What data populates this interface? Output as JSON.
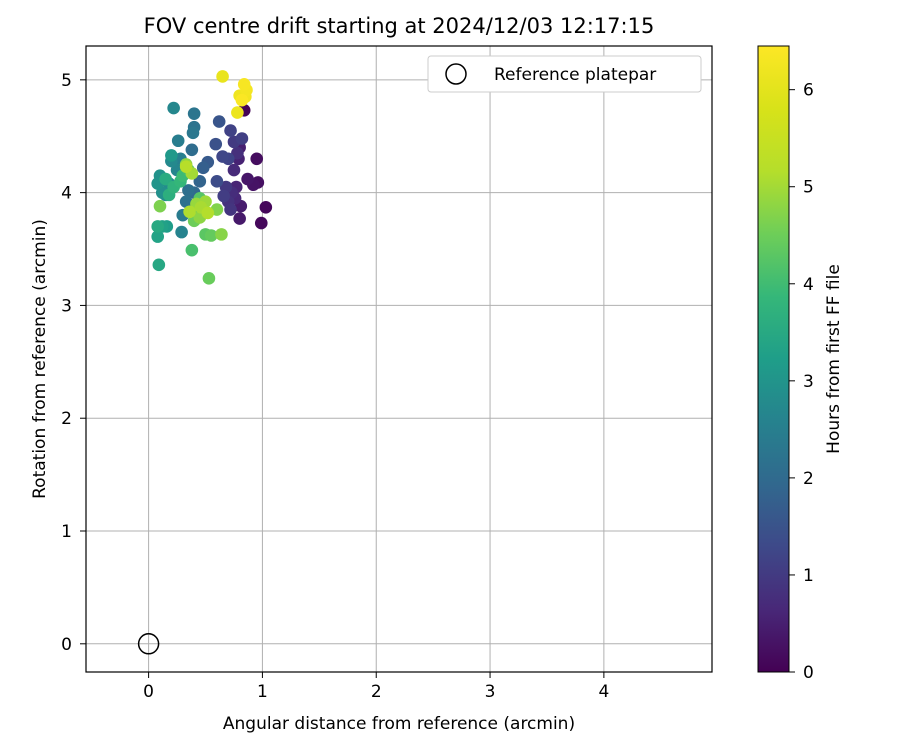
{
  "chart_data": {
    "type": "scatter",
    "title": "FOV centre drift starting at 2024/12/03 12:17:15",
    "xlabel": "Angular distance from reference (arcmin)",
    "ylabel": "Rotation from reference (arcmin)",
    "xlim": [
      -0.55,
      4.95
    ],
    "ylim": [
      -0.25,
      5.3
    ],
    "xticks": [
      0,
      1,
      2,
      3,
      4
    ],
    "yticks": [
      0,
      1,
      2,
      3,
      4,
      5
    ],
    "grid": true,
    "legend": {
      "placement": "upper-right",
      "entries": [
        "Reference platepar"
      ]
    },
    "colorbar": {
      "label": "Hours from first FF file",
      "colormap": "viridis",
      "range": [
        0,
        6.45
      ],
      "ticks": [
        0,
        1,
        2,
        3,
        4,
        5,
        6
      ]
    },
    "reference_point": {
      "x": 0,
      "y": 0
    },
    "series": [
      {
        "columns": [
          "x",
          "y",
          "hours"
        ],
        "points": [
          [
            0.84,
            4.73,
            0.05
          ],
          [
            1.03,
            3.87,
            0.1
          ],
          [
            0.99,
            3.73,
            0.12
          ],
          [
            0.95,
            4.3,
            0.2
          ],
          [
            0.96,
            4.09,
            0.25
          ],
          [
            0.92,
            4.07,
            0.3
          ],
          [
            0.87,
            4.12,
            0.35
          ],
          [
            0.8,
            3.77,
            0.4
          ],
          [
            0.81,
            3.88,
            0.45
          ],
          [
            0.8,
            4.4,
            0.5
          ],
          [
            0.79,
            4.3,
            0.55
          ],
          [
            0.77,
            4.05,
            0.6
          ],
          [
            0.76,
            3.95,
            0.65
          ],
          [
            0.75,
            4.2,
            0.7
          ],
          [
            0.73,
            4.0,
            0.75
          ],
          [
            0.78,
            4.35,
            0.8
          ],
          [
            0.7,
            3.92,
            0.85
          ],
          [
            0.72,
            3.85,
            0.9
          ],
          [
            0.68,
            4.05,
            0.95
          ],
          [
            0.75,
            4.45,
            1.0
          ],
          [
            0.66,
            3.97,
            1.05
          ],
          [
            0.82,
            4.48,
            1.1
          ],
          [
            0.72,
            4.55,
            1.15
          ],
          [
            0.7,
            4.3,
            1.2
          ],
          [
            0.65,
            4.32,
            1.25
          ],
          [
            0.6,
            4.1,
            1.35
          ],
          [
            0.59,
            4.43,
            1.45
          ],
          [
            0.62,
            4.63,
            1.55
          ],
          [
            0.52,
            4.27,
            1.65
          ],
          [
            0.48,
            4.22,
            1.75
          ],
          [
            0.45,
            4.1,
            1.85
          ],
          [
            0.4,
            4.0,
            1.95
          ],
          [
            0.38,
            4.38,
            2.05
          ],
          [
            0.35,
            4.02,
            2.1
          ],
          [
            0.33,
            3.92,
            2.15
          ],
          [
            0.4,
            4.58,
            2.2
          ],
          [
            0.4,
            4.7,
            2.25
          ],
          [
            0.39,
            4.53,
            2.3
          ],
          [
            0.3,
            3.8,
            2.4
          ],
          [
            0.26,
            4.46,
            2.45
          ],
          [
            0.28,
            4.3,
            2.5
          ],
          [
            0.29,
            3.65,
            2.6
          ],
          [
            0.25,
            4.2,
            2.65
          ],
          [
            0.22,
            4.75,
            2.7
          ],
          [
            0.2,
            4.28,
            2.75
          ],
          [
            0.18,
            4.08,
            2.8
          ],
          [
            0.15,
            3.98,
            2.85
          ],
          [
            0.12,
            4.0,
            2.9
          ],
          [
            0.1,
            4.15,
            2.95
          ],
          [
            0.08,
            4.08,
            3.0
          ],
          [
            0.2,
            4.33,
            3.1
          ],
          [
            0.16,
            3.7,
            3.2
          ],
          [
            0.12,
            3.7,
            3.3
          ],
          [
            0.08,
            3.61,
            3.35
          ],
          [
            0.09,
            3.36,
            3.45
          ],
          [
            0.08,
            3.7,
            3.5
          ],
          [
            0.15,
            4.12,
            3.55
          ],
          [
            0.18,
            3.98,
            3.65
          ],
          [
            0.22,
            4.05,
            3.75
          ],
          [
            0.28,
            4.1,
            3.85
          ],
          [
            0.3,
            4.15,
            3.95
          ],
          [
            0.35,
            4.2,
            4.05
          ],
          [
            0.38,
            3.49,
            4.1
          ],
          [
            0.42,
            3.8,
            4.2
          ],
          [
            0.45,
            3.95,
            4.25
          ],
          [
            0.5,
            3.63,
            4.3
          ],
          [
            0.55,
            3.62,
            4.4
          ],
          [
            0.53,
            3.24,
            4.45
          ],
          [
            0.4,
            3.75,
            4.5
          ],
          [
            0.48,
            3.85,
            4.6
          ],
          [
            0.1,
            3.88,
            4.65
          ],
          [
            0.6,
            3.85,
            4.7
          ],
          [
            0.64,
            3.63,
            4.75
          ],
          [
            0.45,
            3.78,
            4.8
          ],
          [
            0.33,
            4.25,
            4.85
          ],
          [
            0.42,
            3.9,
            4.9
          ],
          [
            0.5,
            3.92,
            4.95
          ],
          [
            0.38,
            4.17,
            5.0
          ],
          [
            0.46,
            3.87,
            5.05
          ],
          [
            0.36,
            3.83,
            5.1
          ],
          [
            0.52,
            3.82,
            5.15
          ],
          [
            0.33,
            4.23,
            5.2
          ],
          [
            0.65,
            5.03,
            6.1
          ],
          [
            0.78,
            4.71,
            6.15
          ],
          [
            0.8,
            4.86,
            6.2
          ],
          [
            0.85,
            4.85,
            6.25
          ],
          [
            0.86,
            4.91,
            6.3
          ],
          [
            0.84,
            4.96,
            6.35
          ],
          [
            0.82,
            4.82,
            6.4
          ]
        ]
      }
    ]
  }
}
